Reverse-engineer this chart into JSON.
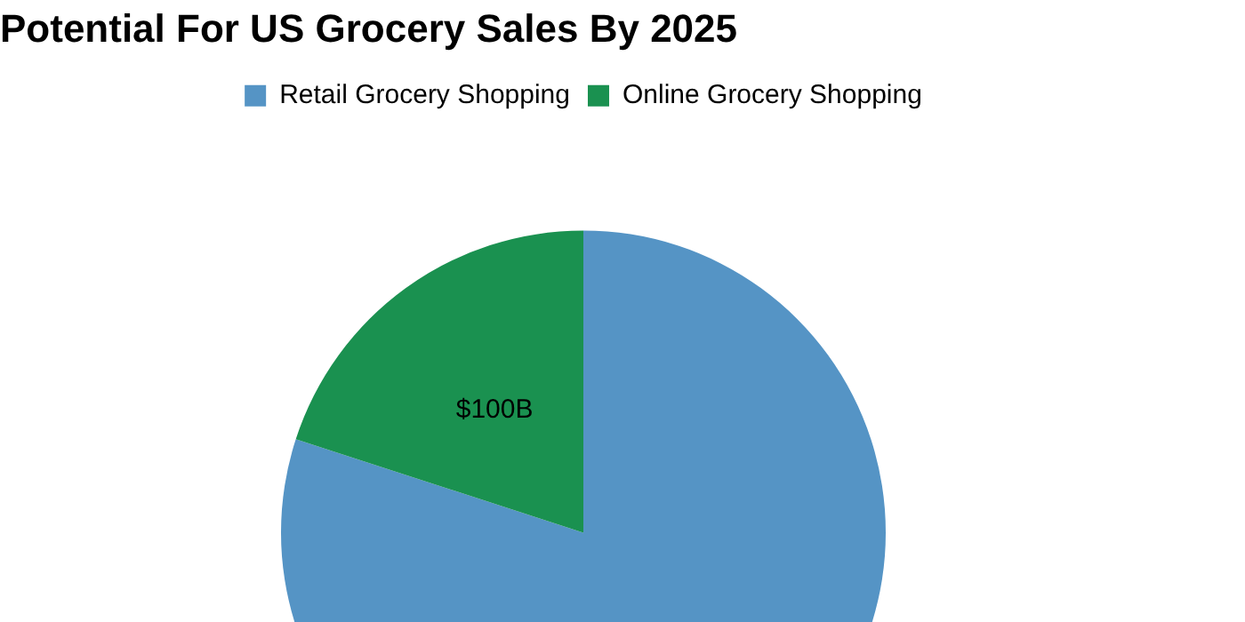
{
  "chart_data": {
    "type": "pie",
    "title": "Potential For US Grocery Sales By 2025",
    "categories": [
      "Retail Grocery Shopping",
      "Online Grocery Shopping"
    ],
    "values": [
      400,
      100
    ],
    "colors": [
      "#5594c5",
      "#1a9150"
    ],
    "value_labels": [
      null,
      "$100B"
    ],
    "legend": "top"
  }
}
